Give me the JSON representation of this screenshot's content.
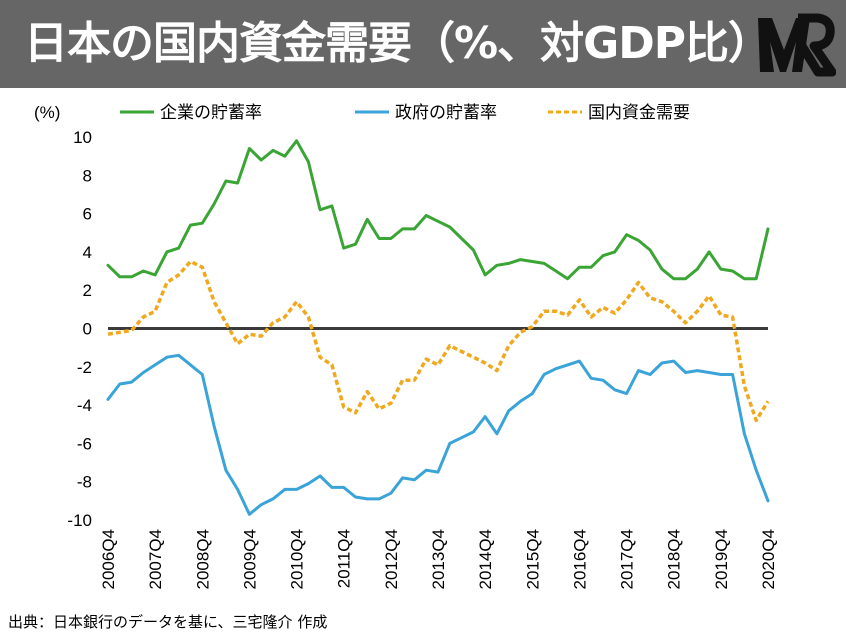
{
  "header": {
    "title": "日本の国内資金需要（%、対GDP比）",
    "logo_icon": "mr-logo-icon"
  },
  "source": "出典：日本銀行のデータを基に、三宅隆介 作成",
  "chart_data": {
    "type": "line",
    "ylabel": "(%)",
    "xlabel": "",
    "title": "",
    "ylim": [
      -10,
      10
    ],
    "yticks": [
      10,
      8,
      6,
      4,
      2,
      0,
      -2,
      -4,
      -6,
      -8,
      -10
    ],
    "x_tick_labels": [
      "2006Q4",
      "2007Q4",
      "2008Q4",
      "2009Q4",
      "2010Q4",
      "2011Q4",
      "2012Q4",
      "2013Q4",
      "2014Q4",
      "2015Q4",
      "2016Q4",
      "2017Q4",
      "2018Q4",
      "2019Q4",
      "2020Q4"
    ],
    "x_start": "2006Q4",
    "x_end": "2020Q4",
    "legend_position": "top",
    "grid": false,
    "series": [
      {
        "name": "企業の貯蓄率",
        "color": "#3aa535",
        "style": "solid",
        "values": [
          3.3,
          2.7,
          2.7,
          3.0,
          2.8,
          4.0,
          4.2,
          5.4,
          5.5,
          6.5,
          7.7,
          7.6,
          9.4,
          8.8,
          9.3,
          9.0,
          9.8,
          8.7,
          6.2,
          6.4,
          4.2,
          4.4,
          5.7,
          4.7,
          4.7,
          5.2,
          5.2,
          5.9,
          5.6,
          5.3,
          4.7,
          4.1,
          2.8,
          3.3,
          3.4,
          3.6,
          3.5,
          3.4,
          3.0,
          2.6,
          3.2,
          3.2,
          3.8,
          4.0,
          4.9,
          4.6,
          4.1,
          3.1,
          2.6,
          2.6,
          3.1,
          4.0,
          3.1,
          3.0,
          2.6,
          2.6,
          5.2
        ]
      },
      {
        "name": "政府の貯蓄率",
        "color": "#3aa3d8",
        "style": "solid",
        "values": [
          -3.7,
          -2.9,
          -2.8,
          -2.3,
          -1.9,
          -1.5,
          -1.4,
          -1.9,
          -2.4,
          -5.1,
          -7.4,
          -8.4,
          -9.7,
          -9.2,
          -8.9,
          -8.4,
          -8.4,
          -8.1,
          -7.7,
          -8.3,
          -8.3,
          -8.8,
          -8.9,
          -8.9,
          -8.6,
          -7.8,
          -7.9,
          -7.4,
          -7.5,
          -6.0,
          -5.7,
          -5.4,
          -4.6,
          -5.5,
          -4.3,
          -3.8,
          -3.4,
          -2.4,
          -2.1,
          -1.9,
          -1.7,
          -2.6,
          -2.7,
          -3.2,
          -3.4,
          -2.2,
          -2.4,
          -1.8,
          -1.7,
          -2.3,
          -2.2,
          -2.3,
          -2.4,
          -2.4,
          -5.5,
          -7.4,
          -9.0
        ]
      },
      {
        "name": "国内資金需要",
        "color": "#f0a81e",
        "style": "dashed",
        "values": [
          -0.3,
          -0.2,
          -0.1,
          0.6,
          0.9,
          2.4,
          2.8,
          3.5,
          3.2,
          1.4,
          0.3,
          -0.8,
          -0.3,
          -0.4,
          0.3,
          0.6,
          1.4,
          0.6,
          -1.5,
          -1.9,
          -4.1,
          -4.4,
          -3.3,
          -4.2,
          -3.9,
          -2.7,
          -2.7,
          -1.6,
          -1.9,
          -0.9,
          -1.2,
          -1.5,
          -1.8,
          -2.2,
          -0.9,
          -0.2,
          0.1,
          0.9,
          0.9,
          0.7,
          1.5,
          0.6,
          1.1,
          0.8,
          1.5,
          2.4,
          1.6,
          1.4,
          0.9,
          0.3,
          0.9,
          1.7,
          0.7,
          0.6,
          -3.0,
          -4.8,
          -3.8
        ]
      }
    ]
  }
}
